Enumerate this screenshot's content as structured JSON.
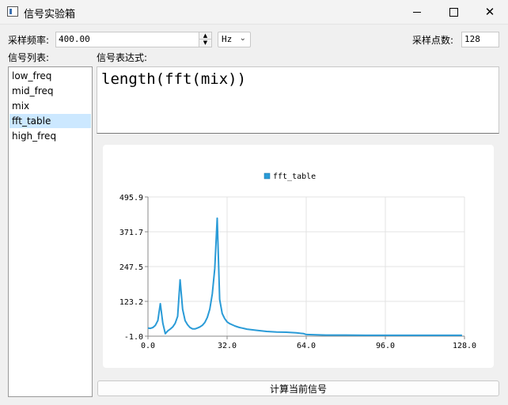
{
  "window": {
    "title": "信号实验箱",
    "close_glyph": "✕"
  },
  "toolbar": {
    "sample_rate_label": "采样频率:",
    "sample_rate_value": "400.00",
    "spin_up_glyph": "▲",
    "spin_down_glyph": "▼",
    "unit_value": "Hz",
    "unit_arrow_glyph": "⌄",
    "points_label": "采样点数:",
    "points_value": "128"
  },
  "signal_list": {
    "label": "信号列表:",
    "items": [
      "low_freq",
      "mid_freq",
      "mix",
      "fft_table",
      "high_freq"
    ],
    "selected": "fft_table"
  },
  "expression": {
    "label": "信号表达式:",
    "value": "length(fft(mix))"
  },
  "chart_data": {
    "type": "line",
    "legend": [
      "fft_table"
    ],
    "legend_placement": "top-center",
    "series": [
      {
        "name": "fft_table",
        "color": "#2a9bd7",
        "x": [
          0,
          1,
          2,
          3,
          4,
          5,
          6,
          7,
          8,
          9,
          10,
          11,
          12,
          13,
          14,
          15,
          16,
          17,
          18,
          19,
          20,
          21,
          22,
          23,
          24,
          25,
          26,
          27,
          28,
          29,
          30,
          31,
          32,
          33,
          34,
          35,
          36,
          37,
          38,
          39,
          40,
          44,
          48,
          52,
          56,
          60,
          63,
          64,
          68,
          72,
          80,
          88,
          96,
          104,
          112,
          120,
          127
        ],
        "y": [
          28,
          27,
          30,
          38,
          55,
          115,
          45,
          8,
          18,
          24,
          32,
          45,
          70,
          200,
          95,
          55,
          40,
          30,
          25,
          25,
          28,
          32,
          38,
          48,
          66,
          95,
          150,
          240,
          420,
          130,
          80,
          62,
          50,
          44,
          40,
          36,
          33,
          30,
          28,
          26,
          24,
          20,
          16,
          14,
          13,
          11,
          8,
          5,
          4,
          3,
          3,
          2,
          2,
          2,
          2,
          2,
          2
        ]
      }
    ],
    "x_ticks": [
      "0.0",
      "32.0",
      "64.0",
      "96.0",
      "128.0"
    ],
    "y_ticks": [
      "-1.0",
      "123.2",
      "247.5",
      "371.7",
      "495.9"
    ],
    "xlim": [
      0,
      128
    ],
    "ylim": [
      -1,
      495.9
    ],
    "grid": true
  },
  "compute_button": {
    "label": "计算当前信号"
  }
}
